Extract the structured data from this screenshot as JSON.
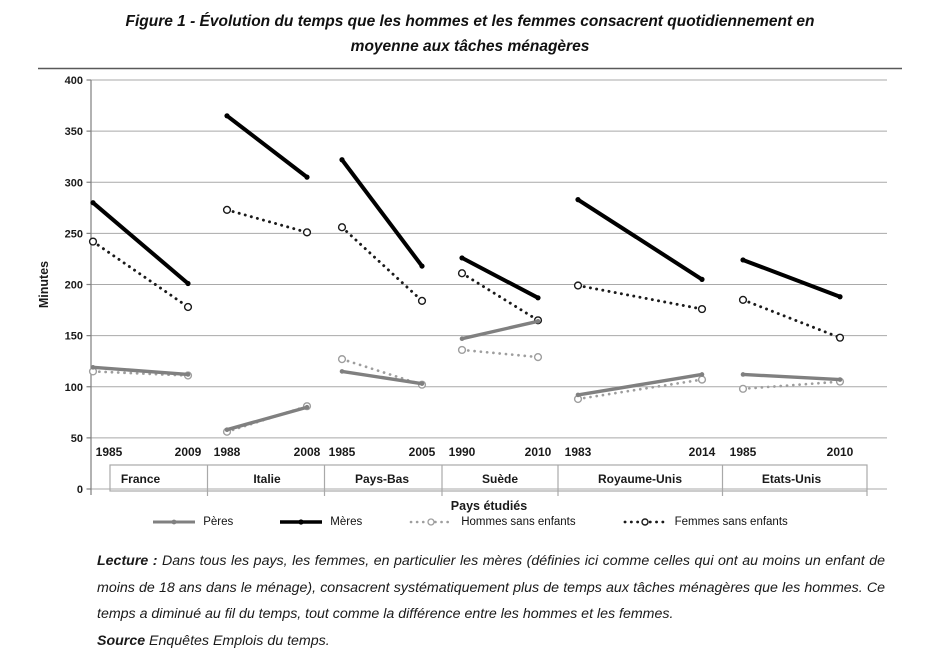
{
  "figure": {
    "title_line1": "Figure 1 - Évolution du temps que les hommes et les femmes consacrent quotidiennement en",
    "title_line2": "moyenne aux tâches ménagères"
  },
  "chart_data": {
    "type": "line",
    "title": "Évolution du temps consacré quotidiennement aux tâches ménagères",
    "ylabel": "Minutes",
    "xlabel": "Pays étudiés",
    "ylim": [
      0,
      400
    ],
    "ytick_step": 50,
    "grid": true,
    "legend_position": "bottom",
    "groups": [
      {
        "country": "France",
        "years": [
          "1985",
          "2009"
        ]
      },
      {
        "country": "Italie",
        "years": [
          "1988",
          "2008"
        ]
      },
      {
        "country": "Pays-Bas",
        "years": [
          "1985",
          "2005"
        ]
      },
      {
        "country": "Suède",
        "years": [
          "1990",
          "2010"
        ]
      },
      {
        "country": "Royaume-Unis",
        "years": [
          "1983",
          "2014"
        ]
      },
      {
        "country": "Etats-Unis",
        "years": [
          "1985",
          "2010"
        ]
      }
    ],
    "series": [
      {
        "name": "Pères",
        "style": "solid",
        "color": "#808080",
        "values": [
          [
            119,
            112
          ],
          [
            58,
            80
          ],
          [
            115,
            103
          ],
          [
            147,
            164
          ],
          [
            92,
            112
          ],
          [
            112,
            107
          ]
        ]
      },
      {
        "name": "Mères",
        "style": "solid",
        "color": "#000000",
        "values": [
          [
            280,
            201
          ],
          [
            365,
            305
          ],
          [
            322,
            218
          ],
          [
            226,
            187
          ],
          [
            283,
            205
          ],
          [
            224,
            188
          ]
        ]
      },
      {
        "name": "Hommes sans enfants",
        "style": "dotted",
        "color": "#9e9e9e",
        "values": [
          [
            115,
            111
          ],
          [
            56,
            81
          ],
          [
            127,
            102
          ],
          [
            136,
            129
          ],
          [
            88,
            107
          ],
          [
            98,
            105
          ]
        ]
      },
      {
        "name": "Femmes sans enfants",
        "style": "dotted",
        "color": "#1a1a1a",
        "values": [
          [
            242,
            178
          ],
          [
            273,
            251
          ],
          [
            256,
            184
          ],
          [
            211,
            165
          ],
          [
            199,
            176
          ],
          [
            185,
            148
          ]
        ]
      }
    ]
  },
  "notes": {
    "lecture_label": "Lecture :",
    "lecture_text": " Dans tous les pays, les femmes, en particulier les mères (définies ici comme celles qui ont au moins un enfant de moins de 18 ans dans le ménage), consacrent systématiquement plus de temps aux tâches ménagères que les hommes. Ce temps a diminué au fil du temps, tout comme la différence entre les hommes et les femmes.",
    "source_label": "Source",
    "source_text": " Enquêtes Emplois du temps."
  },
  "colors": {
    "grid": "#a9a9a9",
    "axis": "#7f7f7f",
    "chart_border": "#595959",
    "text": "#1a1a1a",
    "band_border": "#a9a9a9"
  }
}
